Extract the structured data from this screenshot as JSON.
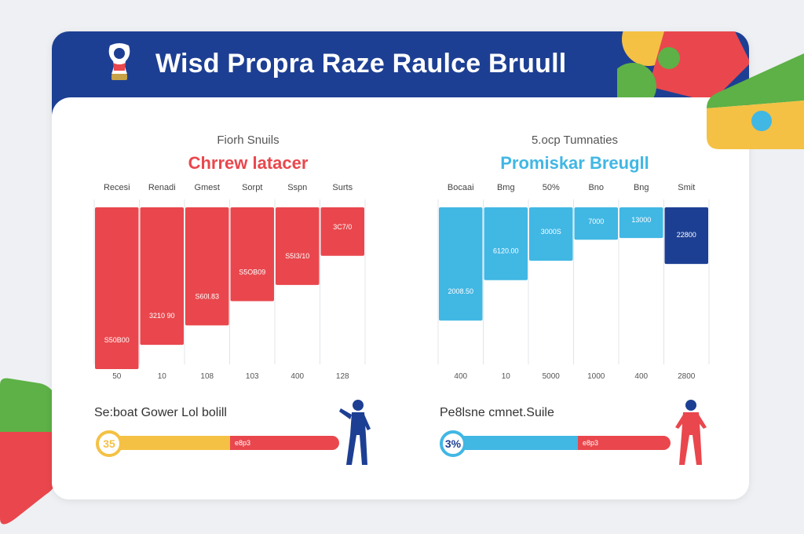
{
  "header": {
    "title": "Wisd Propra Raze Raulce Bruull"
  },
  "colors": {
    "banner": "#1d3f93",
    "red": "#e9474d",
    "blue": "#41b7e4",
    "navy": "#1d3f93",
    "yellow": "#f4c144",
    "green": "#5db146"
  },
  "left_panel": {
    "subtitle": "Fiorh Snuils",
    "title": "Chrrew latacer",
    "section_label": "Se:boat Gower Lol bolill",
    "gauge": {
      "badge": "35",
      "segment_label": "e8p3",
      "fill_fraction": 0.53
    }
  },
  "right_panel": {
    "subtitle": "5.ocp Tumnaties",
    "title": "Promiskar Breugll",
    "section_label": "Pe8lsne cmnet.Suile",
    "gauge": {
      "badge": "3%",
      "segment_label": "e8p3",
      "fill_fraction": 0.58
    }
  },
  "chart_data": [
    {
      "type": "bar",
      "categories": [
        "Recesi",
        "Renadi",
        "Gmest",
        "Sorpt",
        "Sspn",
        "Surts"
      ],
      "values": [
        1.0,
        0.85,
        0.73,
        0.58,
        0.48,
        0.3
      ],
      "data_labels": [
        "S50B00",
        "3210 90",
        "S60l.83",
        "S5OB09",
        "S5I3/10",
        "3C7/0"
      ],
      "bottom_labels": [
        "50",
        "10",
        "108",
        "103",
        "400",
        "128"
      ],
      "color": "#e9474d"
    },
    {
      "type": "bar",
      "categories": [
        "Bocaai",
        "Bmg",
        "50%",
        "Bno",
        "Bng",
        "Smit"
      ],
      "values": [
        0.7,
        0.45,
        0.33,
        0.2,
        0.19,
        0.35
      ],
      "data_labels": [
        "2008.50",
        "6120.00",
        "3000S",
        "7000",
        "13000",
        "22800"
      ],
      "bottom_labels": [
        "400",
        "10",
        "5000",
        "1000",
        "400",
        "2800"
      ],
      "colors": [
        "#41b7e4",
        "#41b7e4",
        "#41b7e4",
        "#41b7e4",
        "#41b7e4",
        "#1d3f93"
      ]
    }
  ]
}
